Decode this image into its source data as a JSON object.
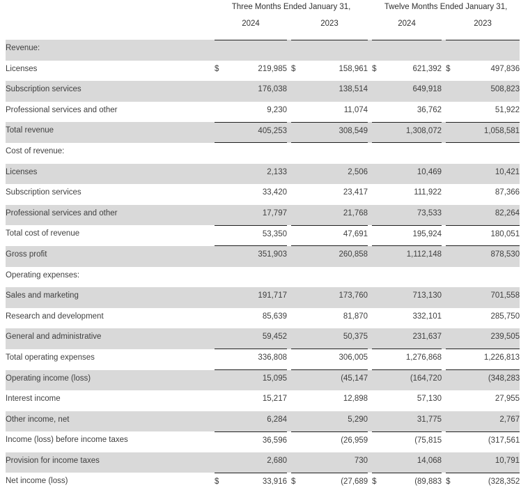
{
  "style": {
    "shaded_row_color": "#d9d9d9",
    "rule_color": "#1f1f1f",
    "body_text_color": "#3f3f3f",
    "header_text_color": "#303030"
  },
  "table": {
    "currency_symbol": "$",
    "col_groups": [
      {
        "label": "Three Months Ended January 31,",
        "years": [
          "2024",
          "2023"
        ]
      },
      {
        "label": "Twelve Months Ended January 31,",
        "years": [
          "2024",
          "2023"
        ]
      }
    ],
    "rows": [
      {
        "label": "Revenue:",
        "indent": 0,
        "shaded": true,
        "dollar": false,
        "top_rule": false,
        "bottom_rule": false,
        "values": [
          "",
          "",
          "",
          ""
        ]
      },
      {
        "label": "Licenses",
        "indent": 1,
        "shaded": false,
        "dollar": true,
        "top_rule": false,
        "bottom_rule": false,
        "values": [
          "219,985",
          "158,961",
          "621,392",
          "497,836"
        ]
      },
      {
        "label": "Subscription services",
        "indent": 1,
        "shaded": true,
        "dollar": false,
        "top_rule": false,
        "bottom_rule": false,
        "values": [
          "176,038",
          "138,514",
          "649,918",
          "508,823"
        ]
      },
      {
        "label": "Professional services and other",
        "indent": 1,
        "shaded": false,
        "dollar": false,
        "top_rule": false,
        "bottom_rule": false,
        "values": [
          "9,230",
          "11,074",
          "36,762",
          "51,922"
        ]
      },
      {
        "label": "Total revenue",
        "indent": 2,
        "shaded": true,
        "dollar": false,
        "top_rule": true,
        "bottom_rule": true,
        "values": [
          "405,253",
          "308,549",
          "1,308,072",
          "1,058,581"
        ]
      },
      {
        "label": "Cost of revenue:",
        "indent": 0,
        "shaded": false,
        "dollar": false,
        "top_rule": false,
        "bottom_rule": false,
        "values": [
          "",
          "",
          "",
          ""
        ]
      },
      {
        "label": "Licenses",
        "indent": 1,
        "shaded": true,
        "dollar": false,
        "top_rule": false,
        "bottom_rule": false,
        "values": [
          "2,133",
          "2,506",
          "10,469",
          "10,421"
        ]
      },
      {
        "label": "Subscription services",
        "indent": 1,
        "shaded": false,
        "dollar": false,
        "top_rule": false,
        "bottom_rule": false,
        "values": [
          "33,420",
          "23,417",
          "111,922",
          "87,366"
        ]
      },
      {
        "label": "Professional services and other",
        "indent": 1,
        "shaded": true,
        "dollar": false,
        "top_rule": false,
        "bottom_rule": false,
        "values": [
          "17,797",
          "21,768",
          "73,533",
          "82,264"
        ]
      },
      {
        "label": "Total cost of revenue",
        "indent": 2,
        "shaded": false,
        "dollar": false,
        "top_rule": true,
        "bottom_rule": false,
        "values": [
          "53,350",
          "47,691",
          "195,924",
          "180,051"
        ]
      },
      {
        "label": "Gross profit",
        "indent": 0,
        "shaded": true,
        "dollar": false,
        "top_rule": true,
        "bottom_rule": false,
        "values": [
          "351,903",
          "260,858",
          "1,112,148",
          "878,530"
        ]
      },
      {
        "label": "Operating expenses:",
        "indent": 0,
        "shaded": false,
        "dollar": false,
        "top_rule": false,
        "bottom_rule": false,
        "values": [
          "",
          "",
          "",
          ""
        ]
      },
      {
        "label": "Sales and marketing",
        "indent": 1,
        "shaded": true,
        "dollar": false,
        "top_rule": false,
        "bottom_rule": false,
        "values": [
          "191,717",
          "173,760",
          "713,130",
          "701,558"
        ]
      },
      {
        "label": "Research and development",
        "indent": 1,
        "shaded": false,
        "dollar": false,
        "top_rule": false,
        "bottom_rule": false,
        "values": [
          "85,639",
          "81,870",
          "332,101",
          "285,750"
        ]
      },
      {
        "label": "General and administrative",
        "indent": 1,
        "shaded": true,
        "dollar": false,
        "top_rule": false,
        "bottom_rule": false,
        "values": [
          "59,452",
          "50,375",
          "231,637",
          "239,505"
        ]
      },
      {
        "label": "Total operating expenses",
        "indent": 2,
        "shaded": false,
        "dollar": false,
        "top_rule": true,
        "bottom_rule": false,
        "values": [
          "336,808",
          "306,005",
          "1,276,868",
          "1,226,813"
        ]
      },
      {
        "label": "Operating income (loss)",
        "indent": 0,
        "shaded": true,
        "dollar": false,
        "top_rule": true,
        "bottom_rule": false,
        "values": [
          "15,095",
          "(45,147)",
          "(164,720)",
          "(348,283)"
        ]
      },
      {
        "label": "Interest income",
        "indent": 1,
        "shaded": false,
        "dollar": false,
        "top_rule": false,
        "bottom_rule": false,
        "values": [
          "15,217",
          "12,898",
          "57,130",
          "27,955"
        ]
      },
      {
        "label": "Other income, net",
        "indent": 1,
        "shaded": true,
        "dollar": false,
        "top_rule": false,
        "bottom_rule": false,
        "values": [
          "6,284",
          "5,290",
          "31,775",
          "2,767"
        ]
      },
      {
        "label": "Income (loss) before income taxes",
        "indent": 0,
        "shaded": false,
        "dollar": false,
        "top_rule": true,
        "bottom_rule": false,
        "values": [
          "36,596",
          "(26,959)",
          "(75,815)",
          "(317,561)"
        ]
      },
      {
        "label": "Provision for income taxes",
        "indent": 1,
        "shaded": true,
        "dollar": false,
        "top_rule": false,
        "bottom_rule": false,
        "values": [
          "2,680",
          "730",
          "14,068",
          "10,791"
        ]
      },
      {
        "label": "Net income (loss)",
        "indent": 0,
        "shaded": false,
        "dollar": true,
        "top_rule": true,
        "bottom_rule": false,
        "values": [
          "33,916",
          "(27,689)",
          "(89,883)",
          "(328,352)"
        ]
      }
    ]
  }
}
